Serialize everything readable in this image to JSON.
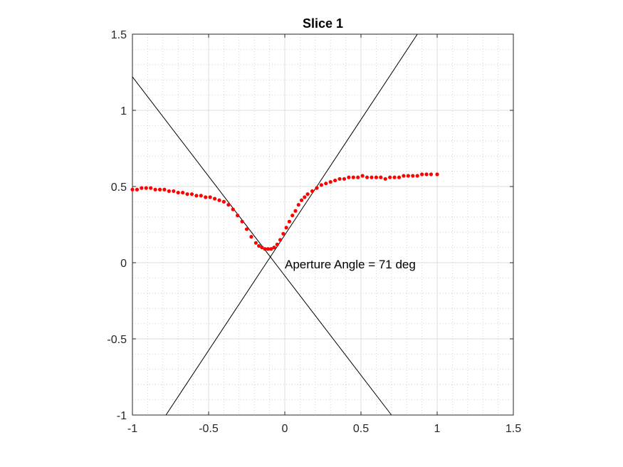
{
  "chart_data": {
    "type": "scatter",
    "title": "Slice 1",
    "xlabel": "",
    "ylabel": "",
    "xlim": [
      -1,
      1.5
    ],
    "ylim": [
      -1,
      1.5
    ],
    "x_ticks": [
      -1,
      -0.5,
      0,
      0.5,
      1,
      1.5
    ],
    "y_ticks": [
      -1,
      -0.5,
      0,
      0.5,
      1,
      1.5
    ],
    "x_tick_labels": [
      "-1",
      "-0.5",
      "0",
      "0.5",
      "1",
      "1.5"
    ],
    "y_tick_labels": [
      "-1",
      "-0.5",
      "0",
      "0.5",
      "1",
      "1.5"
    ],
    "grid": true,
    "minor_grid": true,
    "annotation": {
      "text": "Aperture Angle = 71 deg",
      "x": 0.0,
      "y": -0.01
    },
    "lines": [
      {
        "x": [
          -1.0,
          0.7
        ],
        "y": [
          1.22,
          -1.0
        ],
        "color": "#000000"
      },
      {
        "x": [
          -0.78,
          0.87
        ],
        "y": [
          -1.0,
          1.5
        ],
        "color": "#000000"
      }
    ],
    "series": [
      {
        "marker_color": "#ff0000",
        "x": [
          -1.0,
          -0.97,
          -0.94,
          -0.91,
          -0.88,
          -0.85,
          -0.82,
          -0.79,
          -0.76,
          -0.73,
          -0.7,
          -0.67,
          -0.64,
          -0.61,
          -0.58,
          -0.55,
          -0.52,
          -0.49,
          -0.46,
          -0.43,
          -0.4,
          -0.37,
          -0.34,
          -0.31,
          -0.28,
          -0.25,
          -0.22,
          -0.19,
          -0.17,
          -0.15,
          -0.13,
          -0.11,
          -0.09,
          -0.07,
          -0.05,
          -0.03,
          -0.01,
          0.01,
          0.03,
          0.05,
          0.07,
          0.09,
          0.11,
          0.13,
          0.15,
          0.18,
          0.21,
          0.24,
          0.27,
          0.3,
          0.33,
          0.36,
          0.39,
          0.42,
          0.45,
          0.48,
          0.51,
          0.54,
          0.57,
          0.6,
          0.63,
          0.66,
          0.69,
          0.72,
          0.75,
          0.78,
          0.81,
          0.84,
          0.87,
          0.9,
          0.93,
          0.96,
          1.0
        ],
        "y": [
          0.48,
          0.48,
          0.49,
          0.49,
          0.49,
          0.48,
          0.48,
          0.48,
          0.47,
          0.47,
          0.46,
          0.46,
          0.45,
          0.45,
          0.44,
          0.44,
          0.43,
          0.43,
          0.42,
          0.41,
          0.4,
          0.38,
          0.35,
          0.31,
          0.27,
          0.22,
          0.17,
          0.13,
          0.11,
          0.1,
          0.09,
          0.09,
          0.09,
          0.1,
          0.12,
          0.15,
          0.19,
          0.23,
          0.27,
          0.31,
          0.34,
          0.38,
          0.41,
          0.43,
          0.45,
          0.47,
          0.49,
          0.51,
          0.52,
          0.53,
          0.54,
          0.55,
          0.55,
          0.56,
          0.56,
          0.56,
          0.57,
          0.56,
          0.56,
          0.56,
          0.56,
          0.55,
          0.56,
          0.56,
          0.56,
          0.57,
          0.57,
          0.57,
          0.57,
          0.58,
          0.58,
          0.58,
          0.58
        ]
      }
    ]
  }
}
